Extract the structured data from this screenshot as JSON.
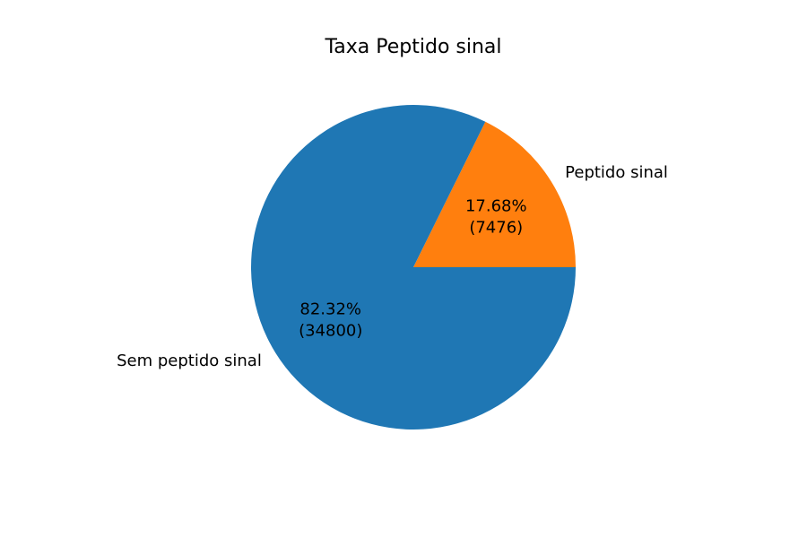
{
  "chart_data": {
    "type": "pie",
    "title": "Taxa Peptido sinal",
    "slices": [
      {
        "label": "Peptido sinal",
        "value": 7476,
        "percent_label": "17.68%",
        "count_label": "(7476)",
        "color": "#ff7f0e"
      },
      {
        "label": "Sem peptido sinal",
        "value": 34800,
        "percent_label": "82.32%",
        "count_label": "(34800)",
        "color": "#1f77b4"
      }
    ]
  }
}
